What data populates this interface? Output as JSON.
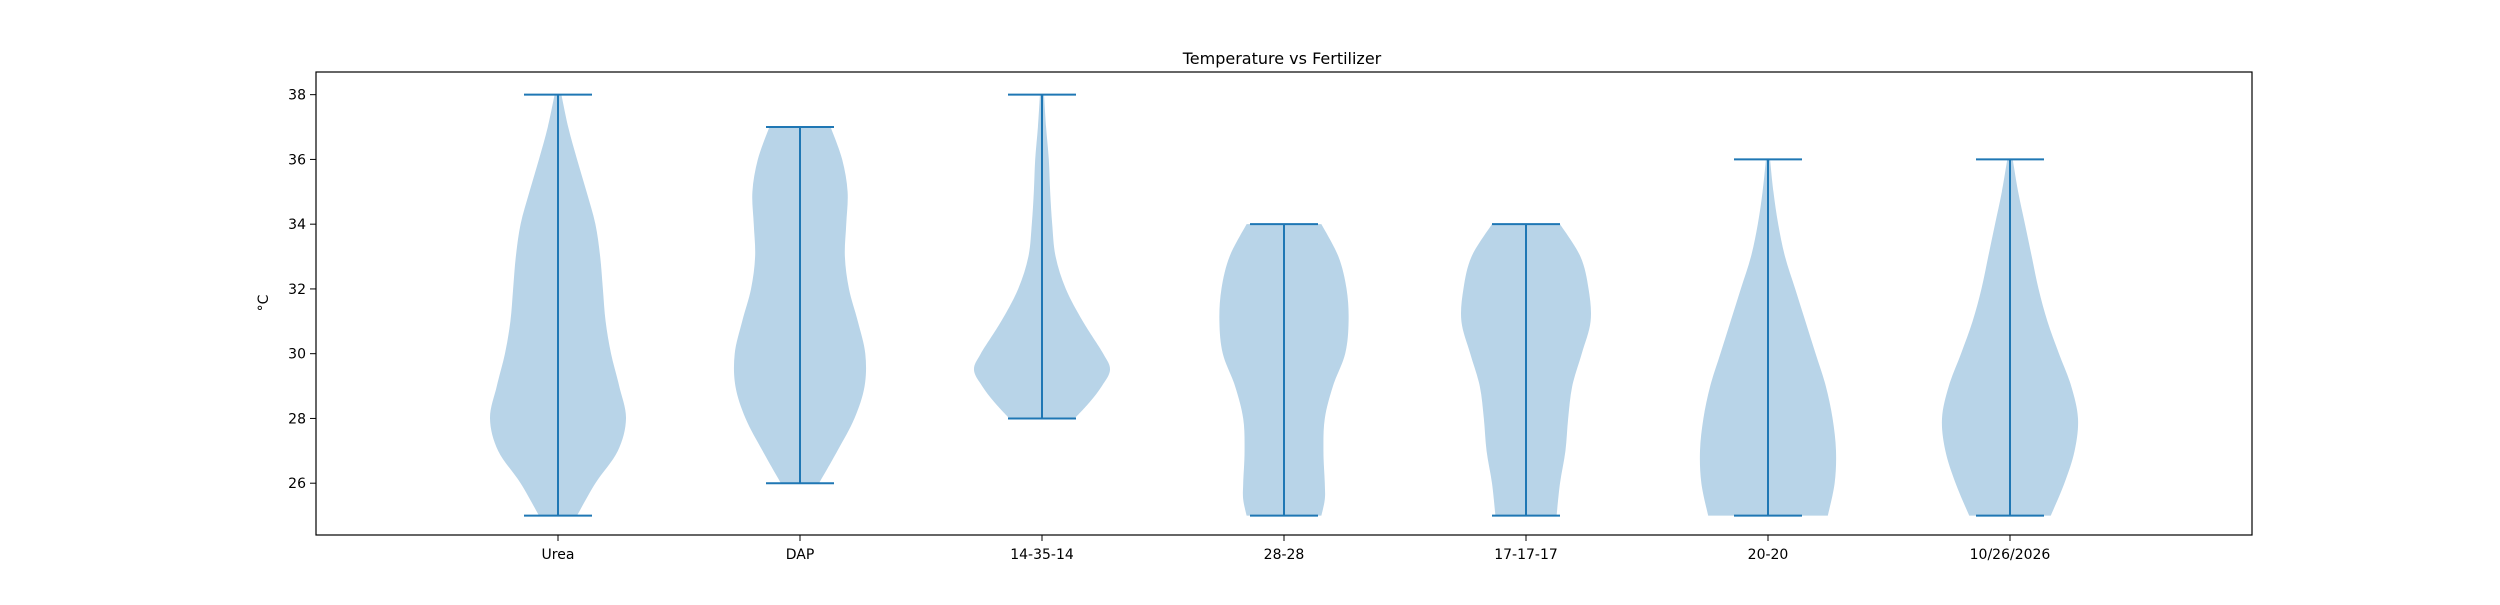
{
  "chart_data": {
    "type": "violin",
    "title": "Temperature vs Fertilizer",
    "xlabel": "",
    "ylabel": "°C",
    "ylim": [
      24.4,
      38.7
    ],
    "yticks": [
      26,
      28,
      30,
      32,
      34,
      36,
      38
    ],
    "grid": false,
    "legend": "none",
    "categories": [
      "Urea",
      "DAP",
      "14-35-14",
      "28-28",
      "17-17-17",
      "20-20",
      "10/26/2026"
    ],
    "series": [
      {
        "min": 25,
        "max": 38,
        "density": [
          [
            25,
            0.28
          ],
          [
            26,
            0.55
          ],
          [
            27,
            0.88
          ],
          [
            28,
            1.0
          ],
          [
            29,
            0.9
          ],
          [
            30,
            0.78
          ],
          [
            31,
            0.7
          ],
          [
            32,
            0.66
          ],
          [
            33,
            0.62
          ],
          [
            34,
            0.55
          ],
          [
            35,
            0.42
          ],
          [
            36,
            0.28
          ],
          [
            37,
            0.15
          ],
          [
            38,
            0.05
          ]
        ]
      },
      {
        "min": 26,
        "max": 37,
        "density": [
          [
            26,
            0.28
          ],
          [
            27,
            0.55
          ],
          [
            28,
            0.8
          ],
          [
            29,
            0.95
          ],
          [
            30,
            0.96
          ],
          [
            31,
            0.85
          ],
          [
            32,
            0.72
          ],
          [
            33,
            0.66
          ],
          [
            34,
            0.68
          ],
          [
            35,
            0.7
          ],
          [
            36,
            0.62
          ],
          [
            37,
            0.45
          ]
        ]
      },
      {
        "min": 28,
        "max": 38,
        "density": [
          [
            28,
            0.48
          ],
          [
            28.5,
            0.7
          ],
          [
            29,
            0.88
          ],
          [
            29.5,
            1.0
          ],
          [
            30,
            0.9
          ],
          [
            31,
            0.6
          ],
          [
            32,
            0.35
          ],
          [
            33,
            0.2
          ],
          [
            34,
            0.15
          ],
          [
            35,
            0.12
          ],
          [
            36,
            0.1
          ],
          [
            37,
            0.06
          ],
          [
            38,
            0.03
          ]
        ]
      },
      {
        "min": 25,
        "max": 34,
        "density": [
          [
            25,
            0.55
          ],
          [
            25.5,
            0.6
          ],
          [
            26,
            0.6
          ],
          [
            27,
            0.58
          ],
          [
            28,
            0.6
          ],
          [
            29,
            0.72
          ],
          [
            30,
            0.9
          ],
          [
            31,
            0.95
          ],
          [
            32,
            0.92
          ],
          [
            33,
            0.8
          ],
          [
            34,
            0.55
          ]
        ]
      },
      {
        "min": 25,
        "max": 34,
        "density": [
          [
            25,
            0.45
          ],
          [
            26,
            0.5
          ],
          [
            27,
            0.58
          ],
          [
            28,
            0.62
          ],
          [
            29,
            0.68
          ],
          [
            30,
            0.82
          ],
          [
            31,
            0.95
          ],
          [
            32,
            0.92
          ],
          [
            33,
            0.8
          ],
          [
            34,
            0.5
          ]
        ]
      },
      {
        "min": 25,
        "max": 36,
        "density": [
          [
            25,
            0.88
          ],
          [
            26,
            0.98
          ],
          [
            27,
            1.0
          ],
          [
            28,
            0.95
          ],
          [
            29,
            0.85
          ],
          [
            30,
            0.7
          ],
          [
            31,
            0.55
          ],
          [
            32,
            0.4
          ],
          [
            33,
            0.25
          ],
          [
            34,
            0.15
          ],
          [
            35,
            0.08
          ],
          [
            36,
            0.03
          ]
        ]
      },
      {
        "min": 25,
        "max": 36,
        "density": [
          [
            25,
            0.6
          ],
          [
            26,
            0.8
          ],
          [
            27,
            0.95
          ],
          [
            28,
            1.0
          ],
          [
            29,
            0.9
          ],
          [
            30,
            0.72
          ],
          [
            31,
            0.55
          ],
          [
            32,
            0.42
          ],
          [
            33,
            0.32
          ],
          [
            34,
            0.22
          ],
          [
            35,
            0.12
          ],
          [
            36,
            0.04
          ]
        ]
      }
    ],
    "colors": {
      "body": "#b8d4e8",
      "lines": "#1f77b4",
      "axes": "#000000"
    }
  }
}
